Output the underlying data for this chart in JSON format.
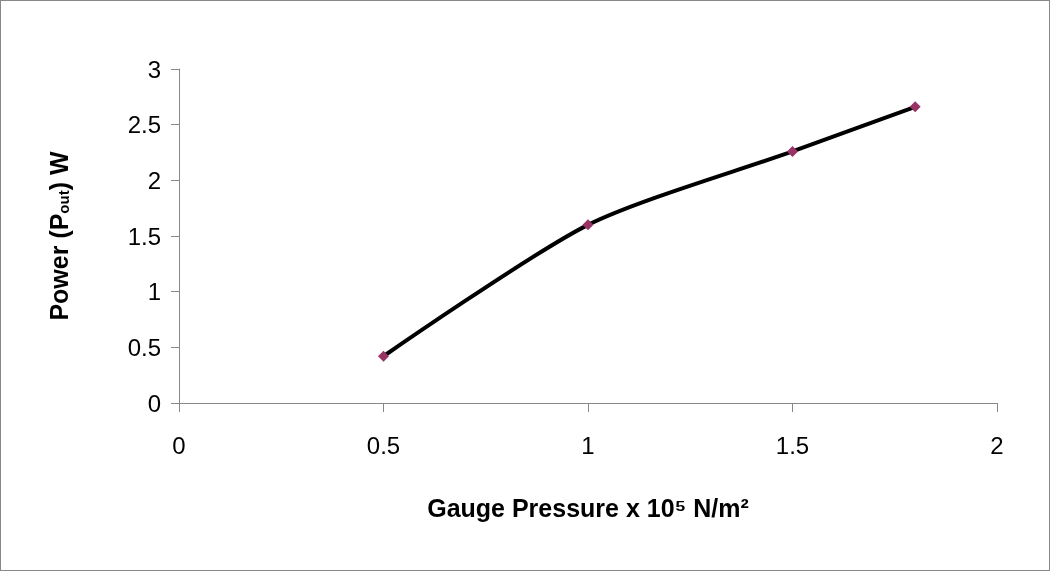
{
  "chart_data": {
    "type": "line",
    "xlabel": "Gauge Pressure x 10⁵ N/m²",
    "ylabel": "Power (P$_{out}$) W",
    "x": [
      0.5,
      1,
      1.5,
      1.8
    ],
    "series": [
      {
        "color": "#000000",
        "colors": [
          "#993366",
          "#993366",
          "#993366",
          "#993366"
        ],
        "values": [
          0.42,
          1.6,
          2.26,
          2.66
        ]
      }
    ],
    "xlim": [
      0,
      2
    ],
    "xticks": [
      0,
      0.5,
      1,
      1.5,
      2
    ],
    "ylim": [
      0,
      3
    ],
    "yticks": [
      0,
      0.5,
      1,
      1.5,
      2,
      2.5,
      3
    ],
    "grid": false,
    "marker": "diamond",
    "line_style": "solid"
  }
}
